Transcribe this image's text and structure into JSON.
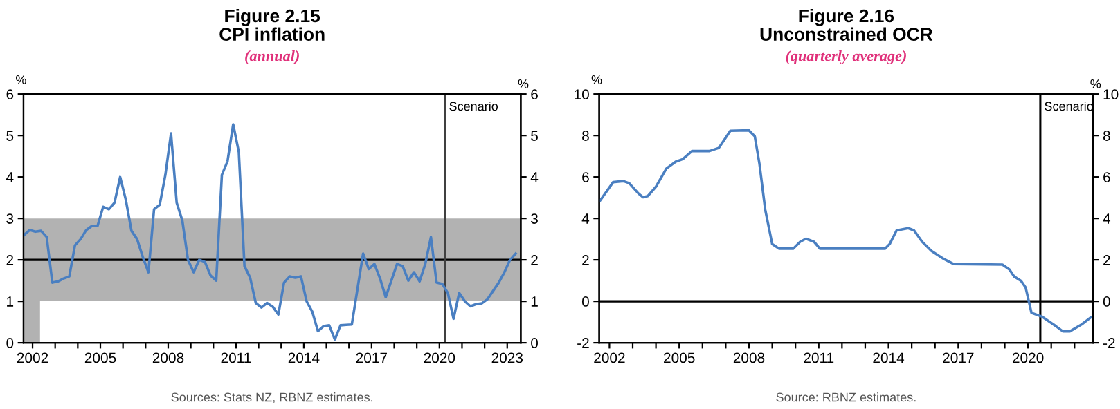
{
  "chart_data": [
    {
      "type": "line",
      "title": "Figure 2.15\nCPI inflation",
      "subtitle": "(annual)",
      "ylabel": "%",
      "y2label": "%",
      "xlim": [
        2001.6,
        2023.6
      ],
      "ylim": [
        0,
        6
      ],
      "yticks": [
        0,
        1,
        2,
        3,
        4,
        5,
        6
      ],
      "y2lim": [
        0,
        6
      ],
      "y2ticks": [
        0,
        1,
        2,
        3,
        4,
        5,
        6
      ],
      "xticks": [
        {
          "value": 2002,
          "label": "2002"
        },
        {
          "value": 2003,
          "label": null
        },
        {
          "value": 2004,
          "label": null
        },
        {
          "value": 2005,
          "label": "2005"
        },
        {
          "value": 2006,
          "label": null
        },
        {
          "value": 2007,
          "label": null
        },
        {
          "value": 2008,
          "label": "2008"
        },
        {
          "value": 2009,
          "label": null
        },
        {
          "value": 2010,
          "label": null
        },
        {
          "value": 2011,
          "label": "2011"
        },
        {
          "value": 2012,
          "label": null
        },
        {
          "value": 2013,
          "label": null
        },
        {
          "value": 2014,
          "label": "2014"
        },
        {
          "value": 2015,
          "label": null
        },
        {
          "value": 2016,
          "label": null
        },
        {
          "value": 2017,
          "label": "2017"
        },
        {
          "value": 2018,
          "label": null
        },
        {
          "value": 2019,
          "label": null
        },
        {
          "value": 2020,
          "label": "2020"
        },
        {
          "value": 2021,
          "label": null
        },
        {
          "value": 2022,
          "label": null
        },
        {
          "value": 2023,
          "label": "2023"
        }
      ],
      "series": [
        {
          "type": "area",
          "color": "#b2b2b2",
          "x": [
            2001.6,
            2002.33
          ],
          "values": [
            1,
            1
          ]
        },
        {
          "color": "#4a7fc1",
          "x": [
            2001.625,
            2001.875,
            2002.125,
            2002.375,
            2002.625,
            2002.875,
            2003.125,
            2003.375,
            2003.625,
            2003.875,
            2004.125,
            2004.375,
            2004.625,
            2004.875,
            2005.125,
            2005.375,
            2005.625,
            2005.875,
            2006.125,
            2006.375,
            2006.625,
            2006.875,
            2007.125,
            2007.375,
            2007.625,
            2007.875,
            2008.125,
            2008.375,
            2008.625,
            2008.875,
            2009.125,
            2009.375,
            2009.625,
            2009.875,
            2010.125,
            2010.375,
            2010.625,
            2010.875,
            2011.125,
            2011.375,
            2011.625,
            2011.875,
            2012.125,
            2012.375,
            2012.625,
            2012.875,
            2013.125,
            2013.375,
            2013.625,
            2013.875,
            2014.125,
            2014.375,
            2014.625,
            2014.875,
            2015.125,
            2015.375,
            2015.625,
            2015.875,
            2016.125,
            2016.375,
            2016.625,
            2016.875,
            2017.125,
            2017.375,
            2017.625,
            2017.875,
            2018.125,
            2018.375,
            2018.625,
            2018.875,
            2019.125,
            2019.375,
            2019.625,
            2019.875,
            2020.125,
            2020.375,
            2020.625,
            2020.875,
            2021.125,
            2021.375,
            2021.625,
            2021.875,
            2022.125,
            2022.375,
            2022.625,
            2022.875,
            2023.125,
            2023.375
          ],
          "values": [
            2.6,
            2.72,
            2.68,
            2.7,
            2.55,
            1.45,
            1.48,
            1.55,
            1.6,
            2.35,
            2.5,
            2.72,
            2.82,
            2.82,
            3.28,
            3.22,
            3.38,
            4.0,
            3.45,
            2.7,
            2.5,
            2.07,
            1.7,
            3.22,
            3.33,
            4.05,
            5.05,
            3.38,
            2.95,
            2.0,
            1.7,
            2.0,
            1.95,
            1.62,
            1.5,
            4.05,
            4.38,
            5.27,
            4.6,
            1.85,
            1.57,
            0.96,
            0.85,
            0.96,
            0.87,
            0.68,
            1.45,
            1.6,
            1.57,
            1.6,
            1.0,
            0.75,
            0.28,
            0.4,
            0.42,
            0.08,
            0.42,
            0.43,
            0.44,
            1.3,
            2.15,
            1.78,
            1.9,
            1.55,
            1.1,
            1.5,
            1.9,
            1.85,
            1.5,
            1.7,
            1.48,
            1.9,
            2.55,
            1.45,
            1.42,
            1.2,
            0.58,
            1.2,
            1.0,
            0.88,
            0.93,
            0.95,
            1.05,
            1.25,
            1.45,
            1.7,
            2.0,
            2.15
          ]
        }
      ],
      "bands": [
        {
          "axis": "y",
          "from": 1,
          "to": 3,
          "color": "#b2b2b2"
        }
      ],
      "ref_lines": [
        {
          "axis": "y",
          "value": 2,
          "color": "#000000"
        },
        {
          "axis": "x",
          "value": 2020.25,
          "label": "Scenario",
          "color": "#404040"
        }
      ],
      "annotations": [
        "Sources: Stats NZ, RBNZ estimates."
      ]
    },
    {
      "type": "line",
      "title": "Figure 2.16\nUnconstrained OCR",
      "subtitle": "(quarterly average)",
      "ylabel": "%",
      "y2label": "%",
      "xlim": [
        2001.56,
        2022.8
      ],
      "ylim": [
        -2,
        10
      ],
      "yticks": [
        -2,
        0,
        2,
        4,
        6,
        8,
        10
      ],
      "y2lim": [
        -2,
        10
      ],
      "y2ticks": [
        -2,
        0,
        2,
        4,
        6,
        8,
        10
      ],
      "xticks": [
        {
          "value": 2002,
          "label": "2002"
        },
        {
          "value": 2003,
          "label": null
        },
        {
          "value": 2004,
          "label": null
        },
        {
          "value": 2005,
          "label": "2005"
        },
        {
          "value": 2006,
          "label": null
        },
        {
          "value": 2007,
          "label": null
        },
        {
          "value": 2008,
          "label": "2008"
        },
        {
          "value": 2009,
          "label": null
        },
        {
          "value": 2010,
          "label": null
        },
        {
          "value": 2011,
          "label": "2011"
        },
        {
          "value": 2012,
          "label": null
        },
        {
          "value": 2013,
          "label": null
        },
        {
          "value": 2014,
          "label": "2014"
        },
        {
          "value": 2015,
          "label": null
        },
        {
          "value": 2016,
          "label": null
        },
        {
          "value": 2017,
          "label": "2017"
        },
        {
          "value": 2018,
          "label": null
        },
        {
          "value": 2019,
          "label": null
        },
        {
          "value": 2020,
          "label": "2020"
        },
        {
          "value": 2021,
          "label": null
        },
        {
          "value": 2022,
          "label": null
        }
      ],
      "series": [
        {
          "color": "#4a7fc1",
          "x": [
            2001.6,
            2002.16,
            2002.6,
            2002.85,
            2003.25,
            2003.45,
            2003.65,
            2004.0,
            2004.45,
            2004.85,
            2005.15,
            2005.55,
            2006.3,
            2006.7,
            2007.2,
            2008.0,
            2008.25,
            2008.45,
            2008.7,
            2009.0,
            2009.3,
            2009.9,
            2010.2,
            2010.45,
            2010.8,
            2011.05,
            2013.85,
            2014.05,
            2014.35,
            2014.85,
            2015.1,
            2015.45,
            2015.85,
            2016.4,
            2016.8,
            2018.9,
            2019.2,
            2019.4,
            2019.7,
            2019.9,
            2020.15,
            2020.6,
            2021.1,
            2021.5,
            2021.8,
            2022.3,
            2022.7
          ],
          "values": [
            4.86,
            5.75,
            5.8,
            5.7,
            5.2,
            5.02,
            5.08,
            5.53,
            6.41,
            6.74,
            6.86,
            7.25,
            7.25,
            7.4,
            8.23,
            8.25,
            7.96,
            6.64,
            4.42,
            2.76,
            2.54,
            2.54,
            2.87,
            3.02,
            2.87,
            2.54,
            2.54,
            2.76,
            3.42,
            3.53,
            3.42,
            2.87,
            2.43,
            2.03,
            1.8,
            1.77,
            1.54,
            1.2,
            0.99,
            0.66,
            -0.56,
            -0.74,
            -1.12,
            -1.45,
            -1.45,
            -1.12,
            -0.78
          ]
        }
      ],
      "ref_lines": [
        {
          "axis": "y",
          "value": 0,
          "color": "#000000"
        },
        {
          "axis": "x",
          "value": 2020.53,
          "label": "Scenario",
          "color": "#000000"
        }
      ],
      "annotations": [
        "Source: RBNZ estimates."
      ]
    }
  ]
}
